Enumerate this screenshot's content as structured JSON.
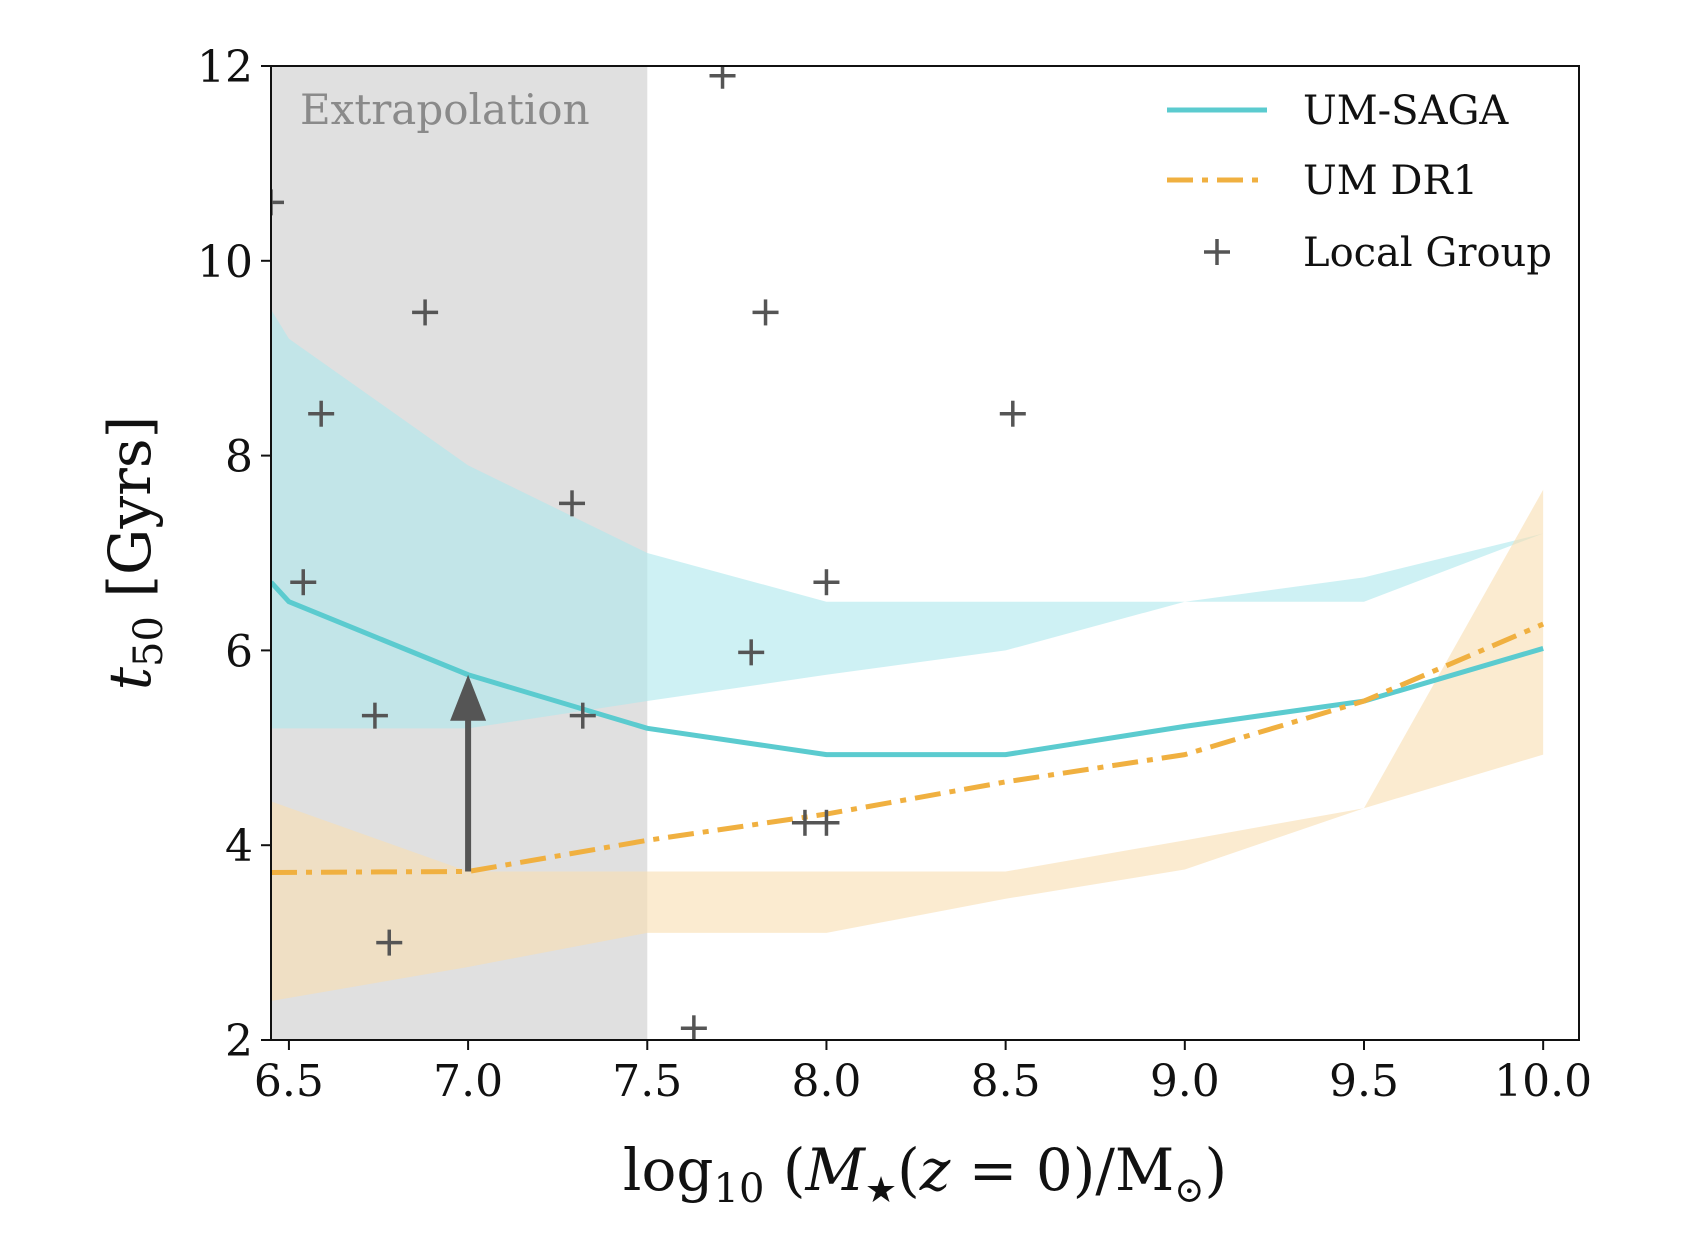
{
  "chart_data": {
    "type": "line",
    "title": "",
    "xlabel": "log10(M★(z=0)/M⊙)",
    "ylabel": "t50 [Gyrs]",
    "xlim": [
      6.45,
      10.1
    ],
    "ylim": [
      2,
      12
    ],
    "xticks": [
      6.5,
      7.0,
      7.5,
      8.0,
      8.5,
      9.0,
      9.5,
      10.0
    ],
    "xtick_labels": [
      "6.5",
      "7.0",
      "7.5",
      "8.0",
      "8.5",
      "9.0",
      "9.5",
      "10.0"
    ],
    "yticks": [
      2,
      4,
      6,
      8,
      10,
      12
    ],
    "ytick_labels": [
      "2",
      "4",
      "6",
      "8",
      "10",
      "12"
    ],
    "grid": false,
    "legend_position": "top-right",
    "shaded_region": {
      "label": "Extrapolation",
      "x_range": [
        6.45,
        7.5
      ],
      "color": "#e0e0e0"
    },
    "series": [
      {
        "name": "UM-SAGA",
        "style": "solid",
        "color": "#5bcbcf",
        "x": [
          6.45,
          6.5,
          7.0,
          7.5,
          8.0,
          8.5,
          9.0,
          9.5,
          10.0
        ],
        "y": [
          6.7,
          6.5,
          5.75,
          5.2,
          4.93,
          4.93,
          5.22,
          5.48,
          6.02
        ],
        "band_lower": [
          5.2,
          5.2,
          5.2,
          5.48,
          5.75,
          6.0,
          6.5,
          6.75,
          7.2
        ],
        "band_upper": [
          9.5,
          9.2,
          7.9,
          7.0,
          6.5,
          6.5,
          6.5,
          6.5,
          7.2
        ],
        "band_color": "#aee8ec"
      },
      {
        "name": "UM DR1",
        "style": "dashdot",
        "color": "#f0b040",
        "x": [
          6.45,
          7.0,
          7.5,
          8.0,
          8.5,
          9.0,
          9.5,
          10.0
        ],
        "y": [
          3.72,
          3.73,
          4.05,
          4.32,
          4.65,
          4.93,
          5.48,
          6.27
        ],
        "band_lower": [
          2.4,
          2.75,
          3.1,
          3.1,
          3.45,
          3.75,
          4.38,
          4.93
        ],
        "band_upper": [
          4.45,
          3.73,
          3.73,
          3.73,
          3.73,
          4.05,
          4.38,
          7.65
        ],
        "band_color": "#f8ddb0"
      }
    ],
    "scatter": {
      "name": "Local Group",
      "marker": "+",
      "color": "#555555",
      "points": [
        {
          "x": 6.45,
          "y": 10.6
        },
        {
          "x": 6.54,
          "y": 6.7
        },
        {
          "x": 6.59,
          "y": 8.43
        },
        {
          "x": 6.74,
          "y": 5.33
        },
        {
          "x": 6.78,
          "y": 3.0
        },
        {
          "x": 6.88,
          "y": 9.47
        },
        {
          "x": 7.29,
          "y": 7.51
        },
        {
          "x": 7.32,
          "y": 5.33
        },
        {
          "x": 7.63,
          "y": 2.12
        },
        {
          "x": 7.71,
          "y": 11.9
        },
        {
          "x": 7.79,
          "y": 5.98
        },
        {
          "x": 7.83,
          "y": 9.47
        },
        {
          "x": 7.94,
          "y": 4.23
        },
        {
          "x": 8.0,
          "y": 4.23
        },
        {
          "x": 8.0,
          "y": 6.7
        },
        {
          "x": 8.52,
          "y": 8.43
        }
      ]
    },
    "annotations": [
      {
        "type": "arrow",
        "x": 7.0,
        "y_from": 3.73,
        "y_to": 5.75,
        "color": "#555555"
      }
    ]
  },
  "colors": {
    "frame": "#111111",
    "arrow": "#555555"
  }
}
